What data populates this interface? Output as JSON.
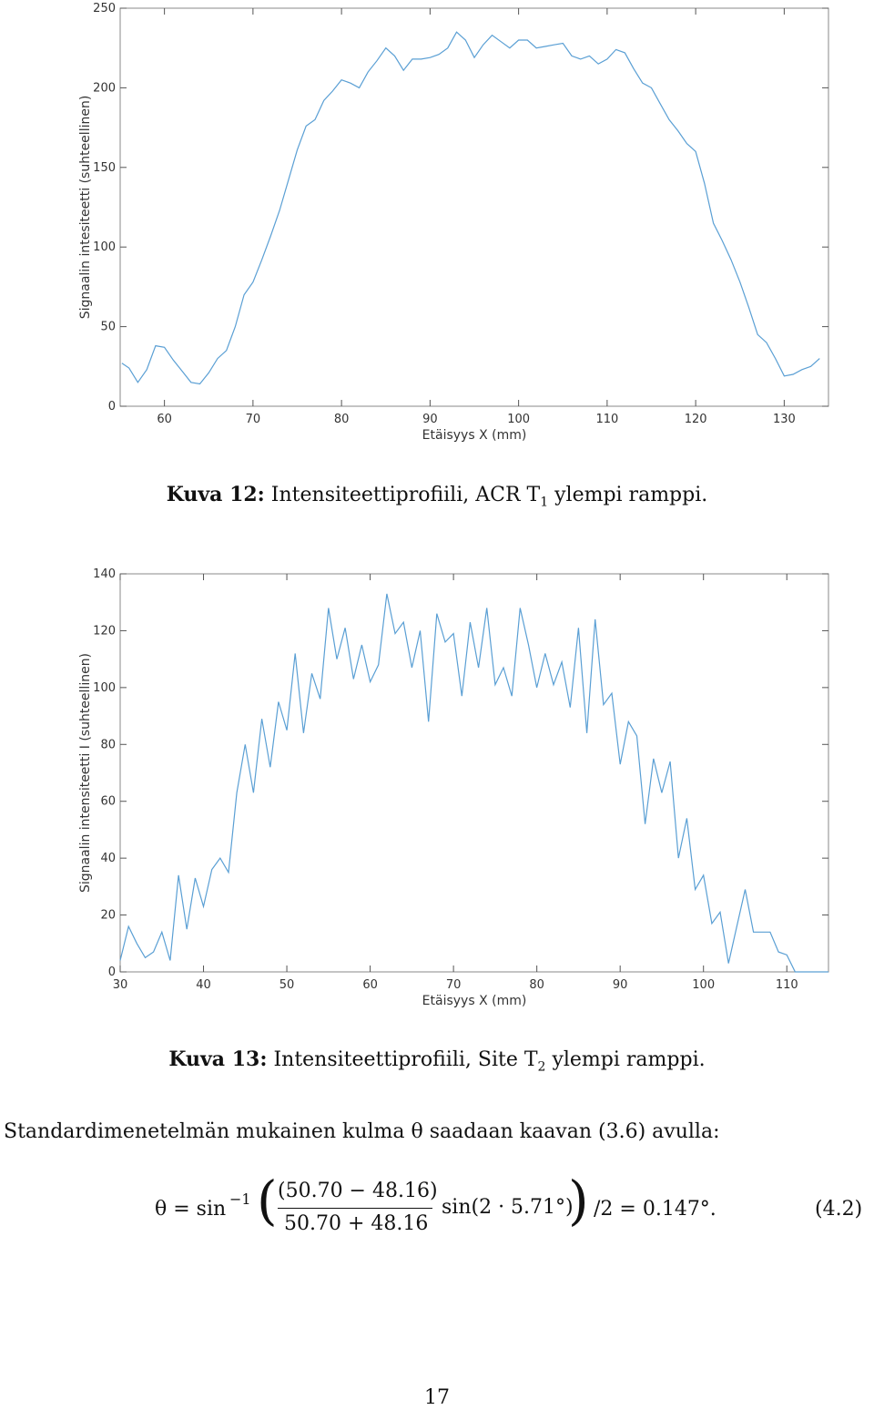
{
  "figures": [
    {
      "caption_label": "Kuva 12:",
      "caption_text_before_sub": " Intensiteettiprofiili, ACR T",
      "caption_sub": "1",
      "caption_text_after_sub": " ylempi ramppi.",
      "chart_data": {
        "type": "line",
        "title": "",
        "xlabel": "Etäisyys X (mm)",
        "ylabel": "Signaalin intesiteetti (suhteellinen)",
        "xlim": [
          55,
          135
        ],
        "ylim": [
          0,
          250
        ],
        "xticks": [
          60,
          70,
          80,
          90,
          100,
          110,
          120,
          130
        ],
        "yticks": [
          0,
          50,
          100,
          150,
          200,
          250
        ],
        "grid": false,
        "line_color": "#5a9fd4",
        "x": [
          55.2,
          56,
          57,
          58,
          59,
          60,
          61,
          62,
          63,
          64,
          65,
          66,
          67,
          68,
          69,
          70,
          71,
          72,
          73,
          74,
          75,
          76,
          77,
          78,
          79,
          80,
          81,
          82,
          83,
          84,
          85,
          86,
          87,
          88,
          89,
          90,
          91,
          92,
          93,
          94,
          95,
          96,
          97,
          98,
          99,
          100,
          101,
          102,
          103,
          104,
          105,
          106,
          107,
          108,
          109,
          110,
          111,
          112,
          113,
          114,
          115,
          116,
          117,
          118,
          119,
          120,
          121,
          122,
          123,
          124,
          125,
          126,
          127,
          128,
          129,
          130,
          131,
          132,
          133,
          134
        ],
        "y": [
          27,
          24,
          15,
          23,
          38,
          37,
          29,
          22,
          15,
          14,
          21,
          30,
          35,
          50,
          70,
          78,
          92,
          107,
          123,
          142,
          161,
          176,
          180,
          192,
          198,
          205,
          203,
          200,
          210,
          217,
          225,
          220,
          211,
          218,
          218,
          219,
          221,
          225,
          235,
          230,
          219,
          227,
          233,
          229,
          225,
          230,
          230,
          225,
          226,
          227,
          228,
          220,
          218,
          220,
          215,
          218,
          224,
          222,
          212,
          203,
          200,
          190,
          180,
          173,
          165,
          160,
          140,
          115,
          104,
          92,
          78,
          62,
          45,
          40,
          30,
          19,
          20,
          23,
          25,
          30
        ]
      }
    },
    {
      "caption_label": "Kuva 13:",
      "caption_text_before_sub": " Intensiteettiprofiili, Site T",
      "caption_sub": "2",
      "caption_text_after_sub": " ylempi ramppi.",
      "chart_data": {
        "type": "line",
        "title": "",
        "xlabel": "Etäisyys X (mm)",
        "ylabel": "Signaalin intensiteetti I (suhteellinen)",
        "xlim": [
          30,
          115
        ],
        "ylim": [
          0,
          140
        ],
        "xticks": [
          30,
          40,
          50,
          60,
          70,
          80,
          90,
          100,
          110
        ],
        "yticks": [
          0,
          20,
          40,
          60,
          80,
          100,
          120,
          140
        ],
        "grid": false,
        "line_color": "#5a9fd4",
        "x": [
          30,
          31,
          32,
          33,
          34,
          35,
          36,
          37,
          38,
          39,
          40,
          41,
          42,
          43,
          44,
          45,
          46,
          47,
          48,
          49,
          50,
          51,
          52,
          53,
          54,
          55,
          56,
          57,
          58,
          59,
          60,
          61,
          62,
          63,
          64,
          65,
          66,
          67,
          68,
          69,
          70,
          71,
          72,
          73,
          74,
          75,
          76,
          77,
          78,
          79,
          80,
          81,
          82,
          83,
          84,
          85,
          86,
          87,
          88,
          89,
          90,
          91,
          92,
          93,
          94,
          95,
          96,
          97,
          98,
          99,
          100,
          101,
          102,
          103,
          104,
          105,
          106,
          107,
          108,
          109,
          110,
          111,
          112,
          113,
          114,
          115
        ],
        "y": [
          4,
          16,
          10,
          5,
          7,
          14,
          4,
          34,
          15,
          33,
          23,
          36,
          40,
          35,
          63,
          80,
          63,
          89,
          72,
          95,
          85,
          112,
          84,
          105,
          96,
          128,
          110,
          121,
          103,
          115,
          102,
          108,
          133,
          119,
          123,
          107,
          120,
          88,
          126,
          116,
          119,
          97,
          123,
          107,
          128,
          101,
          107,
          97,
          128,
          115,
          100,
          112,
          101,
          109,
          93,
          121,
          84,
          124,
          94,
          98,
          73,
          88,
          83,
          52,
          75,
          63,
          74,
          40,
          54,
          29,
          34,
          17,
          21,
          3,
          16,
          29,
          14,
          14,
          14,
          7,
          6,
          0,
          0,
          0,
          0,
          0
        ]
      }
    }
  ],
  "body_text": "Standardimenetelmän mukainen kulma θ saadaan kaavan (3.6) avulla:",
  "equation": {
    "lhs": "θ = sin",
    "sup": "−1",
    "numerator": "(50.70 − 48.16)",
    "denominator": "50.70 + 48.16",
    "mid": "sin(2 · 5.71°)",
    "rhs": "/2 = 0.147°.",
    "number": "(4.2)"
  },
  "page_number": "17"
}
